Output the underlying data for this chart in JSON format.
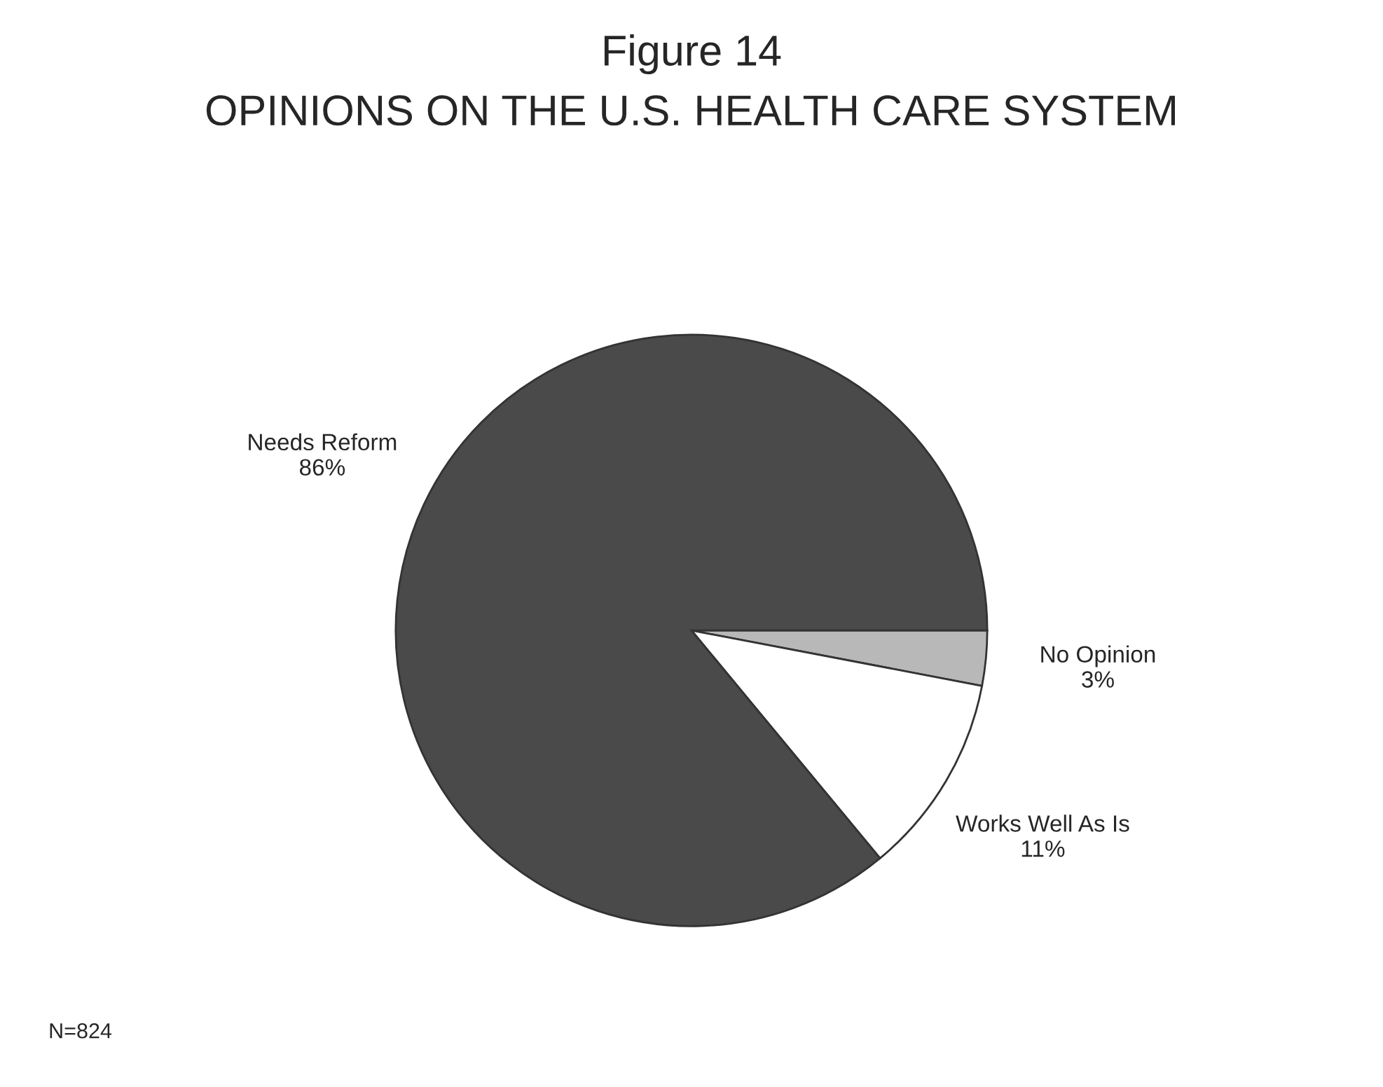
{
  "chart_data": {
    "type": "pie",
    "title": "Figure 14",
    "subtitle": "OPINIONS ON THE U.S. HEALTH CARE SYSTEM",
    "categories": [
      "No Opinion",
      "Works Well As Is",
      "Needs Reform"
    ],
    "values": [
      3,
      11,
      86
    ],
    "value_labels": [
      "3%",
      "11%",
      "86%"
    ],
    "colors": [
      "#b8b8b8",
      "#ffffff",
      "#4a4a4a"
    ],
    "annotations": [
      "N=824"
    ],
    "legend": false
  }
}
